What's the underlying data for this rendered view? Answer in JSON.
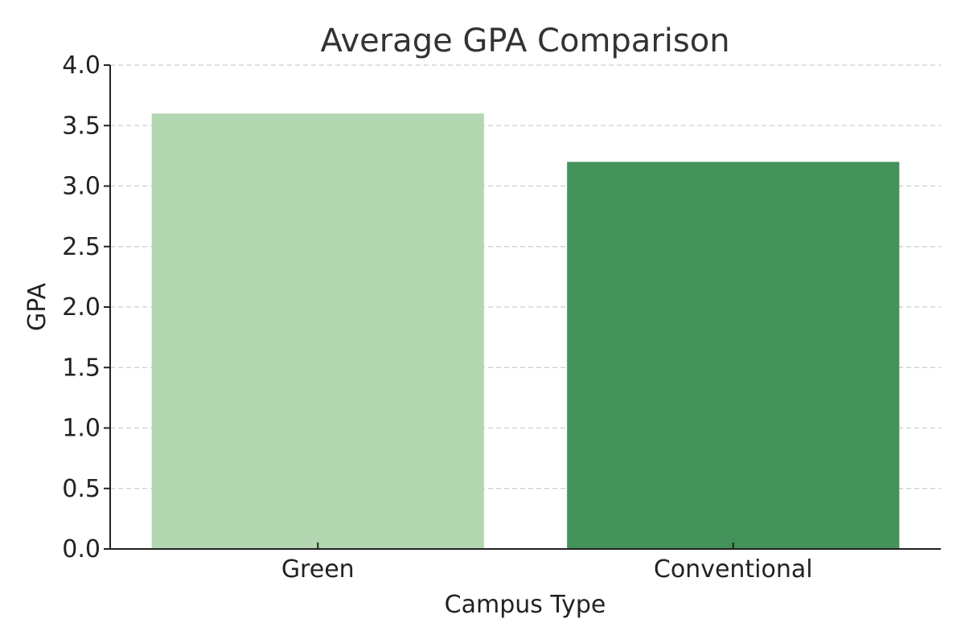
{
  "chart_data": {
    "type": "bar",
    "title": "Average GPA Comparison",
    "xlabel": "Campus Type",
    "ylabel": "GPA",
    "categories": [
      "Green",
      "Conventional"
    ],
    "values": [
      3.6,
      3.2
    ],
    "colors": [
      "#b3d7b0",
      "#44935a"
    ],
    "ylim": [
      0,
      4.0
    ],
    "yticks": [
      "0.0",
      "0.5",
      "1.0",
      "1.5",
      "2.0",
      "2.5",
      "3.0",
      "3.5",
      "4.0"
    ],
    "grid": true
  }
}
